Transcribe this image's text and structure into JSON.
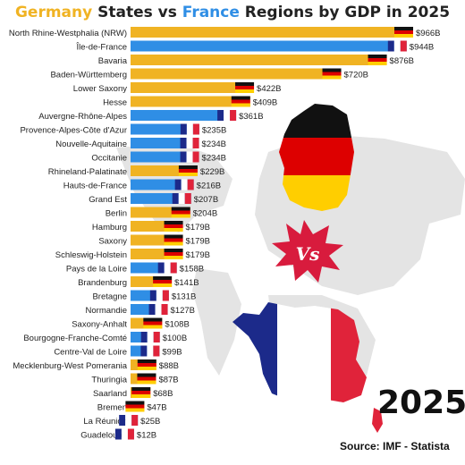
{
  "title": {
    "part1": "Germany",
    "part2": " States vs ",
    "part3": "France",
    "part4": " Regions by GDP in 2025"
  },
  "year": "2025",
  "vs_label": "Vs",
  "source": "Source: IMF - Statista",
  "colors": {
    "germany_bar": "#f0b323",
    "france_bar": "#2f8ee5",
    "de_black": "#111111",
    "de_red": "#dd0000",
    "de_gold": "#ffce00",
    "fr_blue": "#1c2a8a",
    "fr_red": "#e0233a",
    "map": "#e4e4e4"
  },
  "chart_data": {
    "type": "bar",
    "orientation": "horizontal",
    "title": "Germany States vs France Regions by GDP in 2025",
    "categories": [
      "North Rhine-Westphalia (NRW)",
      "Île-de-France",
      "Bavaria",
      "Baden-Württemberg",
      "Lower Saxony",
      "Hesse",
      "Auvergne-Rhône-Alpes",
      "Provence-Alpes-Côte d'Azur",
      "Nouvelle-Aquitaine",
      "Occitanie",
      "Rhineland-Palatinate",
      "Hauts-de-France",
      "Grand Est",
      "Berlin",
      "Hamburg",
      "Saxony",
      "Schleswig-Holstein",
      "Pays de la Loire",
      "Brandenburg",
      "Bretagne",
      "Normandie",
      "Saxony-Anhalt",
      "Bourgogne-Franche-Comté",
      "Centre-Val de Loire",
      "Mecklenburg-West Pomerania",
      "Thuringia",
      "Saarland",
      "Bremen",
      "La Réunion",
      "Guadeloupe"
    ],
    "values": [
      966,
      944,
      876,
      720,
      422,
      409,
      361,
      235,
      234,
      234,
      229,
      216,
      207,
      204,
      179,
      179,
      179,
      158,
      141,
      131,
      127,
      108,
      100,
      99,
      88,
      87,
      68,
      47,
      25,
      12
    ],
    "value_labels": [
      "$966B",
      "$944B",
      "$876B",
      "$720B",
      "$422B",
      "$409B",
      "$361B",
      "$235B",
      "$234B",
      "$234B",
      "$229B",
      "$216B",
      "$207B",
      "$204B",
      "$179B",
      "$179B",
      "$179B",
      "$158B",
      "$141B",
      "$131B",
      "$127B",
      "$108B",
      "$100B",
      "$99B",
      "$88B",
      "$87B",
      "$68B",
      "$47B",
      "$25B",
      "$12B"
    ],
    "country": [
      "DE",
      "FR",
      "DE",
      "DE",
      "DE",
      "DE",
      "FR",
      "FR",
      "FR",
      "FR",
      "DE",
      "FR",
      "FR",
      "DE",
      "DE",
      "DE",
      "DE",
      "FR",
      "DE",
      "FR",
      "FR",
      "DE",
      "FR",
      "FR",
      "DE",
      "DE",
      "DE",
      "DE",
      "FR",
      "FR"
    ],
    "series_colors": {
      "DE": "#f0b323",
      "FR": "#2f8ee5"
    },
    "xlim": [
      0,
      966
    ],
    "unit": "$B"
  }
}
